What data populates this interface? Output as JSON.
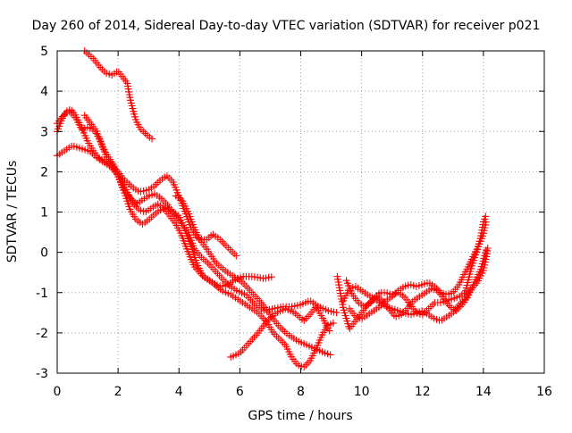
{
  "chart_data": {
    "type": "scatter",
    "title": "Day 260 of 2014, Sidereal Day-to-day VTEC variation (SDTVAR) for receiver p021",
    "xlabel": "GPS time / hours",
    "ylabel": "SDTVAR / TECUs",
    "xlim": [
      0,
      16
    ],
    "ylim": [
      -3,
      5
    ],
    "xticks": [
      "0",
      "2",
      "4",
      "6",
      "8",
      "10",
      "12",
      "14",
      "16"
    ],
    "yticks": [
      "-3",
      "-2",
      "-1",
      "0",
      "1",
      "2",
      "3",
      "4",
      "5"
    ],
    "grid": true,
    "marker": "plus",
    "color": "#ff0000",
    "series": [
      {
        "name": "arc-top",
        "points": [
          [
            0.9,
            5.0
          ],
          [
            1.2,
            4.8
          ],
          [
            1.4,
            4.6
          ],
          [
            1.6,
            4.45
          ],
          [
            1.8,
            4.4
          ],
          [
            2.0,
            4.5
          ],
          [
            2.1,
            4.4
          ],
          [
            2.3,
            4.2
          ],
          [
            2.4,
            3.8
          ],
          [
            2.5,
            3.5
          ],
          [
            2.6,
            3.25
          ],
          [
            2.75,
            3.05
          ],
          [
            2.9,
            2.95
          ],
          [
            3.0,
            2.88
          ],
          [
            3.1,
            2.82
          ],
          [
            3.2,
            2.8
          ]
        ]
      },
      {
        "name": "arc-a",
        "points": [
          [
            0.0,
            2.4
          ],
          [
            0.3,
            2.55
          ],
          [
            0.5,
            2.65
          ],
          [
            0.7,
            2.6
          ],
          [
            0.9,
            2.55
          ],
          [
            1.1,
            2.5
          ],
          [
            1.3,
            2.35
          ],
          [
            1.5,
            2.3
          ],
          [
            1.7,
            2.2
          ],
          [
            2.0,
            2.0
          ],
          [
            2.2,
            1.8
          ],
          [
            2.5,
            1.6
          ],
          [
            2.7,
            1.5
          ],
          [
            3.0,
            1.55
          ],
          [
            3.2,
            1.65
          ],
          [
            3.4,
            1.8
          ],
          [
            3.6,
            1.9
          ],
          [
            3.8,
            1.75
          ],
          [
            4.0,
            1.4
          ],
          [
            4.2,
            1.0
          ],
          [
            4.4,
            0.6
          ],
          [
            4.6,
            0.35
          ],
          [
            4.9,
            0.3
          ],
          [
            5.1,
            0.45
          ],
          [
            5.3,
            0.35
          ],
          [
            5.5,
            0.2
          ],
          [
            5.7,
            0.05
          ],
          [
            5.9,
            -0.1
          ]
        ]
      },
      {
        "name": "arc-b",
        "points": [
          [
            0.0,
            3.0
          ],
          [
            0.15,
            3.3
          ],
          [
            0.3,
            3.5
          ],
          [
            0.45,
            3.55
          ],
          [
            0.6,
            3.4
          ],
          [
            0.8,
            3.1
          ],
          [
            1.0,
            2.75
          ],
          [
            1.2,
            2.5
          ],
          [
            1.4,
            2.3
          ],
          [
            1.6,
            2.2
          ],
          [
            1.8,
            2.1
          ],
          [
            2.0,
            1.9
          ],
          [
            2.2,
            1.5
          ],
          [
            2.4,
            1.05
          ],
          [
            2.6,
            0.8
          ],
          [
            2.8,
            0.7
          ],
          [
            3.0,
            0.8
          ],
          [
            3.2,
            0.95
          ],
          [
            3.4,
            1.05
          ],
          [
            3.6,
            1.1
          ],
          [
            3.8,
            1.0
          ],
          [
            4.0,
            0.9
          ],
          [
            4.2,
            0.55
          ],
          [
            4.4,
            0.15
          ],
          [
            4.6,
            -0.3
          ],
          [
            4.8,
            -0.6
          ],
          [
            5.0,
            -0.7
          ],
          [
            5.2,
            -0.8
          ],
          [
            5.4,
            -0.85
          ],
          [
            5.6,
            -0.8
          ],
          [
            5.8,
            -0.7
          ],
          [
            6.1,
            -0.6
          ],
          [
            6.4,
            -0.6
          ],
          [
            6.8,
            -0.65
          ],
          [
            7.1,
            -0.6
          ]
        ]
      },
      {
        "name": "arc-c",
        "points": [
          [
            0.0,
            3.2
          ],
          [
            0.2,
            3.4
          ],
          [
            0.4,
            3.5
          ],
          [
            0.6,
            3.35
          ],
          [
            0.8,
            3.05
          ],
          [
            1.0,
            3.1
          ],
          [
            1.2,
            3.05
          ],
          [
            1.4,
            2.8
          ],
          [
            1.6,
            2.4
          ],
          [
            1.8,
            2.2
          ],
          [
            2.0,
            1.9
          ],
          [
            2.2,
            1.55
          ],
          [
            2.4,
            1.35
          ],
          [
            2.6,
            1.2
          ],
          [
            2.8,
            1.3
          ],
          [
            3.0,
            1.4
          ],
          [
            3.2,
            1.45
          ],
          [
            3.4,
            1.35
          ],
          [
            3.6,
            1.2
          ],
          [
            3.8,
            1.0
          ],
          [
            4.0,
            0.8
          ],
          [
            4.3,
            0.5
          ],
          [
            4.5,
            0.1
          ],
          [
            4.7,
            -0.1
          ],
          [
            5.0,
            -0.3
          ],
          [
            5.3,
            -0.55
          ],
          [
            5.6,
            -0.8
          ],
          [
            5.9,
            -0.95
          ],
          [
            6.2,
            -1.05
          ],
          [
            6.5,
            -1.3
          ],
          [
            6.8,
            -1.45
          ],
          [
            7.1,
            -1.4
          ],
          [
            7.4,
            -1.35
          ],
          [
            7.7,
            -1.35
          ],
          [
            8.0,
            -1.3
          ],
          [
            8.3,
            -1.2
          ],
          [
            8.6,
            -1.35
          ],
          [
            8.9,
            -1.45
          ],
          [
            9.2,
            -1.5
          ]
        ]
      },
      {
        "name": "arc-d",
        "points": [
          [
            0.9,
            3.4
          ],
          [
            1.1,
            3.2
          ],
          [
            1.3,
            3.0
          ],
          [
            1.5,
            2.6
          ],
          [
            1.7,
            2.35
          ],
          [
            1.9,
            2.1
          ],
          [
            2.1,
            1.8
          ],
          [
            2.3,
            1.5
          ],
          [
            2.5,
            1.2
          ],
          [
            2.7,
            1.05
          ],
          [
            2.9,
            1.0
          ],
          [
            3.1,
            1.1
          ],
          [
            3.3,
            1.2
          ],
          [
            3.5,
            1.1
          ],
          [
            3.7,
            0.9
          ],
          [
            3.9,
            0.7
          ],
          [
            4.1,
            0.4
          ],
          [
            4.3,
            0.0
          ],
          [
            4.5,
            -0.35
          ],
          [
            4.8,
            -0.6
          ],
          [
            5.1,
            -0.75
          ],
          [
            5.4,
            -0.95
          ],
          [
            5.7,
            -1.05
          ],
          [
            6.0,
            -1.2
          ],
          [
            6.3,
            -1.35
          ],
          [
            6.6,
            -1.5
          ],
          [
            6.9,
            -1.75
          ],
          [
            7.1,
            -2.0
          ],
          [
            7.3,
            -2.15
          ],
          [
            7.5,
            -2.3
          ],
          [
            7.7,
            -2.6
          ],
          [
            7.9,
            -2.8
          ],
          [
            8.1,
            -2.85
          ],
          [
            8.3,
            -2.7
          ],
          [
            8.5,
            -2.4
          ],
          [
            8.7,
            -2.05
          ],
          [
            8.9,
            -1.8
          ],
          [
            9.1,
            -1.75
          ]
        ]
      },
      {
        "name": "arc-e",
        "points": [
          [
            3.9,
            1.4
          ],
          [
            4.1,
            1.3
          ],
          [
            4.3,
            1.0
          ],
          [
            4.5,
            0.6
          ],
          [
            4.7,
            0.3
          ],
          [
            4.9,
            0.1
          ],
          [
            5.2,
            -0.25
          ],
          [
            5.5,
            -0.45
          ],
          [
            5.8,
            -0.6
          ],
          [
            6.1,
            -0.75
          ],
          [
            6.4,
            -1.0
          ],
          [
            6.7,
            -1.25
          ],
          [
            7.0,
            -1.55
          ],
          [
            7.3,
            -1.85
          ],
          [
            7.6,
            -2.05
          ],
          [
            7.9,
            -2.2
          ],
          [
            8.2,
            -2.3
          ],
          [
            8.5,
            -2.4
          ],
          [
            8.8,
            -2.5
          ],
          [
            9.0,
            -2.55
          ]
        ]
      },
      {
        "name": "arc-f",
        "points": [
          [
            5.7,
            -2.6
          ],
          [
            6.0,
            -2.5
          ],
          [
            6.3,
            -2.25
          ],
          [
            6.6,
            -2.0
          ],
          [
            6.9,
            -1.7
          ],
          [
            7.2,
            -1.5
          ],
          [
            7.5,
            -1.4
          ],
          [
            7.8,
            -1.5
          ],
          [
            8.1,
            -1.7
          ],
          [
            8.3,
            -1.55
          ],
          [
            8.5,
            -1.35
          ],
          [
            8.7,
            -1.6
          ],
          [
            8.9,
            -1.9
          ],
          [
            9.0,
            -2.0
          ]
        ]
      },
      {
        "name": "arc-g",
        "points": [
          [
            9.2,
            -0.6
          ],
          [
            9.4,
            -1.4
          ],
          [
            9.6,
            -1.9
          ],
          [
            9.8,
            -1.7
          ],
          [
            10.0,
            -1.5
          ],
          [
            10.2,
            -1.3
          ],
          [
            10.4,
            -1.15
          ],
          [
            10.6,
            -1.0
          ],
          [
            10.8,
            -1.0
          ],
          [
            11.0,
            -1.05
          ],
          [
            11.2,
            -1.0
          ],
          [
            11.4,
            -1.1
          ],
          [
            11.6,
            -1.3
          ],
          [
            11.8,
            -1.5
          ],
          [
            12.0,
            -1.55
          ],
          [
            12.2,
            -1.4
          ],
          [
            12.4,
            -1.25
          ],
          [
            12.6,
            -1.25
          ],
          [
            12.8,
            -1.2
          ],
          [
            13.0,
            -1.15
          ],
          [
            13.2,
            -1.1
          ],
          [
            13.4,
            -1.0
          ],
          [
            13.5,
            -0.7
          ],
          [
            13.6,
            -0.4
          ],
          [
            13.7,
            -0.15
          ],
          [
            13.8,
            0.05
          ],
          [
            13.9,
            0.35
          ],
          [
            14.0,
            0.75
          ],
          [
            14.1,
            0.95
          ]
        ]
      },
      {
        "name": "arc-h",
        "points": [
          [
            9.4,
            -1.2
          ],
          [
            9.6,
            -0.9
          ],
          [
            9.8,
            -0.85
          ],
          [
            10.0,
            -0.95
          ],
          [
            10.2,
            -1.05
          ],
          [
            10.4,
            -1.15
          ],
          [
            10.6,
            -1.25
          ],
          [
            10.8,
            -1.35
          ],
          [
            11.0,
            -1.4
          ],
          [
            11.2,
            -1.45
          ],
          [
            11.4,
            -1.5
          ],
          [
            11.6,
            -1.55
          ],
          [
            11.8,
            -1.5
          ],
          [
            12.0,
            -1.45
          ],
          [
            12.2,
            -1.55
          ],
          [
            12.4,
            -1.65
          ],
          [
            12.6,
            -1.7
          ],
          [
            12.8,
            -1.6
          ],
          [
            13.0,
            -1.5
          ],
          [
            13.2,
            -1.3
          ],
          [
            13.4,
            -1.15
          ],
          [
            13.6,
            -0.9
          ],
          [
            13.8,
            -0.75
          ],
          [
            14.0,
            -0.45
          ],
          [
            14.1,
            -0.1
          ],
          [
            14.15,
            0.15
          ]
        ]
      },
      {
        "name": "arc-i",
        "points": [
          [
            9.5,
            -0.7
          ],
          [
            9.7,
            -1.05
          ],
          [
            9.9,
            -1.25
          ],
          [
            10.1,
            -1.35
          ],
          [
            10.3,
            -1.25
          ],
          [
            10.5,
            -1.1
          ],
          [
            10.7,
            -1.2
          ],
          [
            10.9,
            -1.4
          ],
          [
            11.1,
            -1.6
          ],
          [
            11.3,
            -1.55
          ],
          [
            11.5,
            -1.4
          ],
          [
            11.7,
            -1.2
          ],
          [
            11.9,
            -1.1
          ],
          [
            12.1,
            -1.0
          ],
          [
            12.3,
            -0.9
          ],
          [
            12.5,
            -0.95
          ],
          [
            12.7,
            -1.15
          ],
          [
            12.9,
            -1.35
          ],
          [
            13.1,
            -1.45
          ],
          [
            13.3,
            -1.3
          ],
          [
            13.5,
            -1.1
          ],
          [
            13.7,
            -0.75
          ],
          [
            13.9,
            -0.45
          ],
          [
            14.0,
            -0.2
          ],
          [
            14.1,
            0.1
          ]
        ]
      },
      {
        "name": "arc-j",
        "points": [
          [
            9.6,
            -1.4
          ],
          [
            9.8,
            -1.6
          ],
          [
            10.0,
            -1.65
          ],
          [
            10.2,
            -1.55
          ],
          [
            10.4,
            -1.45
          ],
          [
            10.6,
            -1.35
          ],
          [
            10.8,
            -1.2
          ],
          [
            11.0,
            -1.1
          ],
          [
            11.2,
            -0.95
          ],
          [
            11.4,
            -0.85
          ],
          [
            11.6,
            -0.8
          ],
          [
            11.8,
            -0.85
          ],
          [
            12.0,
            -0.8
          ],
          [
            12.2,
            -0.75
          ],
          [
            12.4,
            -0.85
          ],
          [
            12.6,
            -1.0
          ],
          [
            12.8,
            -1.05
          ],
          [
            13.0,
            -1.0
          ],
          [
            13.2,
            -0.8
          ],
          [
            13.4,
            -0.5
          ],
          [
            13.6,
            -0.2
          ],
          [
            13.8,
            0.1
          ],
          [
            14.0,
            0.45
          ],
          [
            14.1,
            0.8
          ]
        ]
      }
    ]
  }
}
